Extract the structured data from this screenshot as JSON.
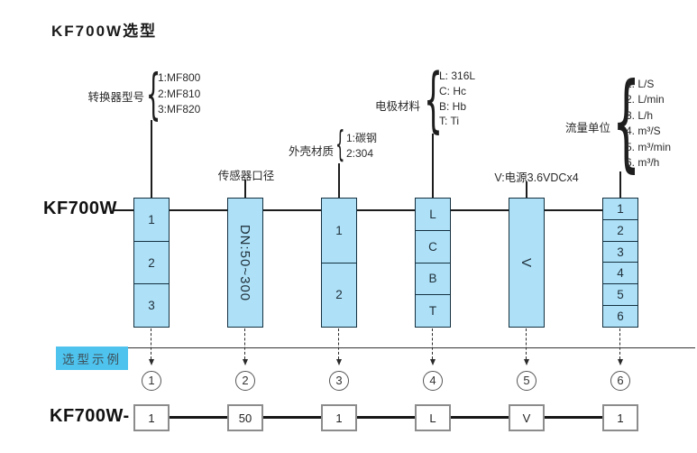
{
  "title": "KF700W选型",
  "model_label": "KF700W",
  "columns": [
    {
      "label": "转换器型号",
      "options": [
        "1:MF800",
        "2:MF810",
        "3:MF820"
      ],
      "cells": [
        "1",
        "2",
        "3"
      ],
      "rotated": false,
      "index": "1"
    },
    {
      "label": "传感器口径",
      "options": [],
      "cells": [
        "DN:50~300"
      ],
      "rotated": true,
      "index": "2"
    },
    {
      "label": "外壳材质",
      "options": [
        "1:碳钢",
        "2:304"
      ],
      "cells": [
        "1",
        "2"
      ],
      "rotated": false,
      "index": "3"
    },
    {
      "label": "电极材料",
      "options": [
        "L: 316L",
        "C: Hc",
        "B: Hb",
        "T: Ti"
      ],
      "cells": [
        "L",
        "C",
        "B",
        "T"
      ],
      "rotated": false,
      "index": "4"
    },
    {
      "label": "V:电源3.6VDCx4",
      "options": [],
      "cells": [
        "V"
      ],
      "rotated": true,
      "index": "5"
    },
    {
      "label": "流量单位",
      "options": [
        "1. L/S",
        "2. L/min",
        "3. L/h",
        "4. m³/S",
        "5. m³/min",
        "6. m³/h"
      ],
      "cells": [
        "1",
        "2",
        "3",
        "4",
        "5",
        "6"
      ],
      "rotated": false,
      "index": "6"
    }
  ],
  "example": {
    "label": "选型示例",
    "prefix": "KF700W-",
    "values": [
      "1",
      "50",
      "1",
      "L",
      "V",
      "1"
    ]
  },
  "colors": {
    "box_fill": "#aee1f8",
    "box_border": "#14303f",
    "accent_cyan": "#4ec3ee",
    "line": "#1c1c1c",
    "example_box_border": "#8c8c8c"
  }
}
